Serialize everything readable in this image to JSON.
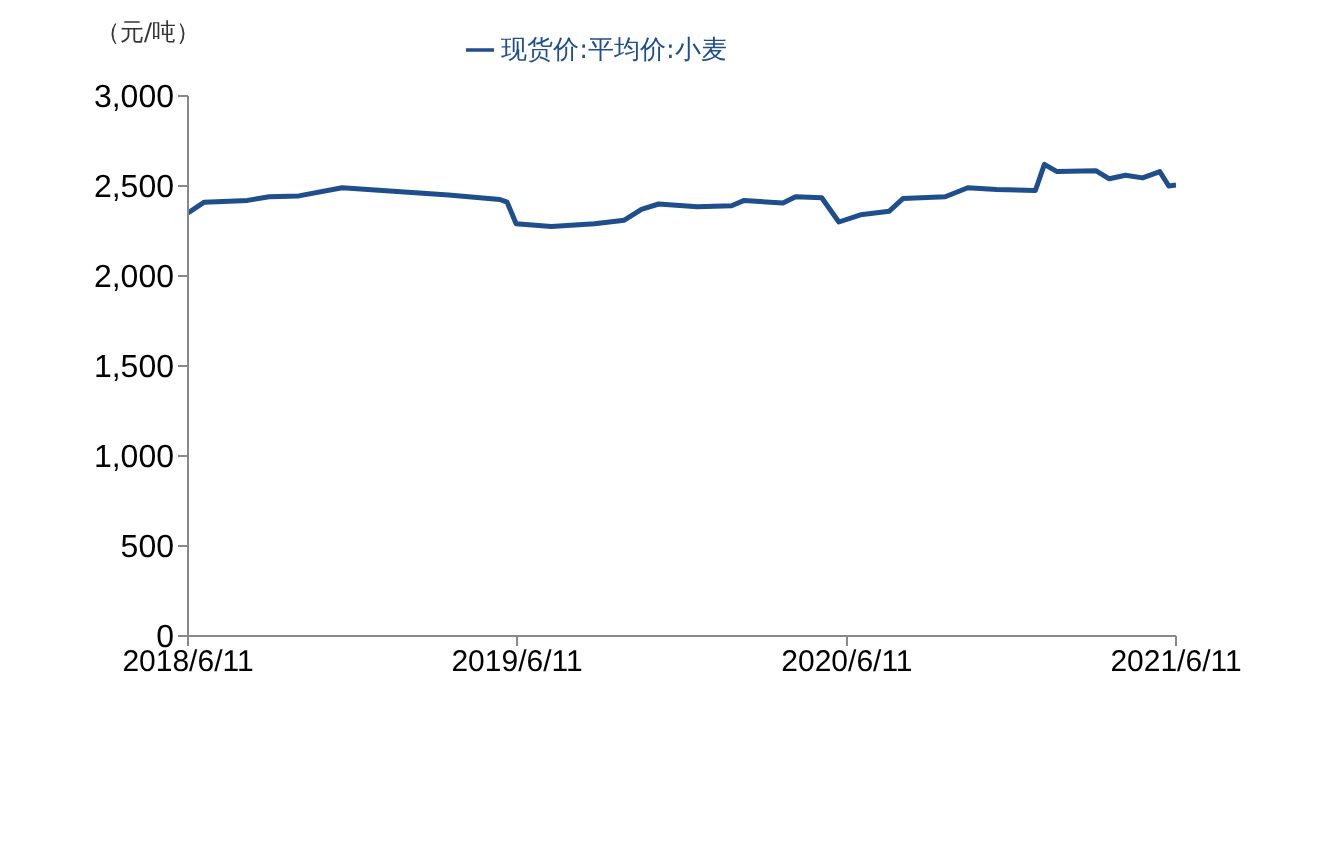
{
  "chart_data": {
    "type": "line",
    "ylabel": "（元/吨）",
    "legend": "top",
    "grid": false,
    "marker": "none",
    "line_style": "solid",
    "xlim": [
      "2018-06-11",
      "2021-06-11"
    ],
    "xticks": [
      {
        "value": "2018-06-11",
        "label": "2018/6/11"
      },
      {
        "value": "2019-06-11",
        "label": "2019/6/11"
      },
      {
        "value": "2020-06-11",
        "label": "2020/6/11"
      },
      {
        "value": "2021-06-11",
        "label": "2021/6/11"
      }
    ],
    "ylim": [
      0,
      3000
    ],
    "yticks": [
      {
        "value": 0,
        "label": "0"
      },
      {
        "value": 500,
        "label": "500"
      },
      {
        "value": 1000,
        "label": "1,000"
      },
      {
        "value": 1500,
        "label": "1,500"
      },
      {
        "value": 2000,
        "label": "2,000"
      },
      {
        "value": 2500,
        "label": "2,500"
      },
      {
        "value": 3000,
        "label": "3,000"
      }
    ],
    "x": [
      "2018-06-11",
      "2018-06-29",
      "2018-08-16",
      "2018-09-09",
      "2018-10-12",
      "2018-11-29",
      "2019-01-29",
      "2019-03-27",
      "2019-05-23",
      "2019-05-31",
      "2019-06-10",
      "2019-07-19",
      "2019-09-05",
      "2019-10-08",
      "2019-10-27",
      "2019-11-15",
      "2019-12-28",
      "2020-02-04",
      "2020-02-18",
      "2020-04-01",
      "2020-04-15",
      "2020-05-14",
      "2020-06-02",
      "2020-06-26",
      "2020-07-28",
      "2020-08-12",
      "2020-09-28",
      "2020-10-23",
      "2020-11-24",
      "2021-01-06",
      "2021-01-16",
      "2021-01-30",
      "2021-03-14",
      "2021-03-29",
      "2021-04-16",
      "2021-05-05",
      "2021-05-24",
      "2021-06-03",
      "2021-06-11"
    ],
    "series": [
      {
        "name": "现货价:平均价:小麦",
        "color": "#1f4e8c",
        "values": [
          2350,
          2410,
          2420,
          2440,
          2445,
          2490,
          2470,
          2450,
          2425,
          2410,
          2290,
          2275,
          2290,
          2310,
          2370,
          2400,
          2385,
          2390,
          2420,
          2405,
          2440,
          2435,
          2300,
          2340,
          2360,
          2430,
          2440,
          2490,
          2480,
          2475,
          2620,
          2580,
          2585,
          2540,
          2560,
          2545,
          2580,
          2500,
          2505
        ]
      }
    ]
  }
}
